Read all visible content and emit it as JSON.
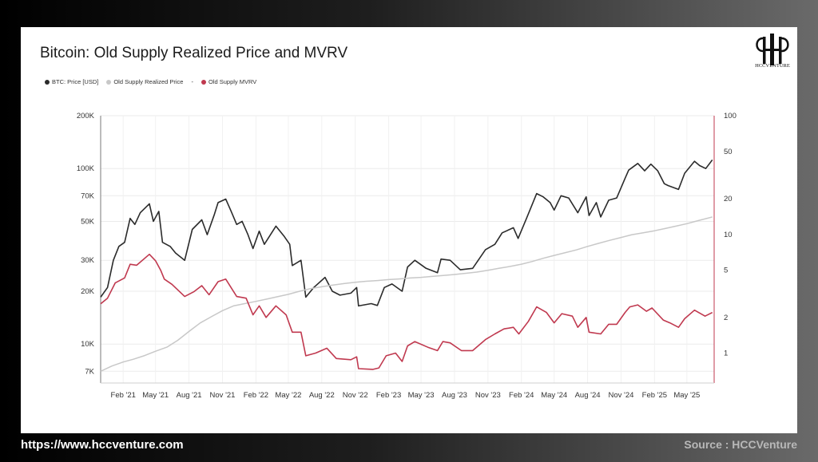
{
  "footer": {
    "url": "https://www.hccventure.com",
    "source": "Source : HCCVenture"
  },
  "brand": {
    "logo_text": "HCCVENTURE"
  },
  "chart_data": {
    "type": "line",
    "title": "Bitcoin: Old Supply Realized Price and MVRV",
    "legend": [
      {
        "name": "BTC: Price [USD]",
        "color": "#2b2b2b"
      },
      {
        "name": "Old Supply Realized Price",
        "color": "#c8c8c8"
      },
      {
        "name": "-",
        "color": ""
      },
      {
        "name": "Old Supply MVRV",
        "color": "#c0394f"
      }
    ],
    "legend_position": "top-left",
    "x_type": "date",
    "x_range": [
      "2020-12-01",
      "2025-07-15"
    ],
    "x_ticks": [
      {
        "label": "Feb '21",
        "date": "2021-02-01"
      },
      {
        "label": "May '21",
        "date": "2021-05-01"
      },
      {
        "label": "Aug '21",
        "date": "2021-08-01"
      },
      {
        "label": "Nov '21",
        "date": "2021-11-01"
      },
      {
        "label": "Feb '22",
        "date": "2022-02-01"
      },
      {
        "label": "May '22",
        "date": "2022-05-01"
      },
      {
        "label": "Aug '22",
        "date": "2022-08-01"
      },
      {
        "label": "Nov '22",
        "date": "2022-11-01"
      },
      {
        "label": "Feb '23",
        "date": "2023-02-01"
      },
      {
        "label": "May '23",
        "date": "2023-05-01"
      },
      {
        "label": "Aug '23",
        "date": "2023-08-01"
      },
      {
        "label": "Nov '23",
        "date": "2023-11-01"
      },
      {
        "label": "Feb '24",
        "date": "2024-02-01"
      },
      {
        "label": "May '24",
        "date": "2024-05-01"
      },
      {
        "label": "Aug '24",
        "date": "2024-08-01"
      },
      {
        "label": "Nov '24",
        "date": "2024-11-01"
      },
      {
        "label": "Feb '25",
        "date": "2025-02-01"
      },
      {
        "label": "May '25",
        "date": "2025-05-01"
      }
    ],
    "y_left": {
      "scale": "log",
      "range": [
        6000,
        200000
      ],
      "ticks": [
        {
          "label": "7K",
          "value": 7000
        },
        {
          "label": "10K",
          "value": 10000
        },
        {
          "label": "20K",
          "value": 20000
        },
        {
          "label": "30K",
          "value": 30000
        },
        {
          "label": "50K",
          "value": 50000
        },
        {
          "label": "70K",
          "value": 70000
        },
        {
          "label": "100K",
          "value": 100000
        },
        {
          "label": "200K",
          "value": 200000
        }
      ]
    },
    "y_right": {
      "scale": "log",
      "range": [
        0.56,
        100
      ],
      "color": "#c0394f",
      "ticks": [
        {
          "label": "1",
          "value": 1
        },
        {
          "label": "2",
          "value": 2
        },
        {
          "label": "5",
          "value": 5
        },
        {
          "label": "10",
          "value": 10
        },
        {
          "label": "20",
          "value": 20
        },
        {
          "label": "50",
          "value": 50
        },
        {
          "label": "100",
          "value": 100
        }
      ]
    },
    "grid": true,
    "series": [
      {
        "name": "BTC: Price [USD]",
        "axis": "left",
        "color": "#2b2b2b",
        "points": [
          [
            "2020-12-01",
            18500
          ],
          [
            "2020-12-20",
            21000
          ],
          [
            "2021-01-05",
            30000
          ],
          [
            "2021-01-20",
            36000
          ],
          [
            "2021-02-05",
            38000
          ],
          [
            "2021-02-20",
            52000
          ],
          [
            "2021-03-05",
            48000
          ],
          [
            "2021-03-20",
            56000
          ],
          [
            "2021-04-14",
            63000
          ],
          [
            "2021-04-25",
            50000
          ],
          [
            "2021-05-10",
            57000
          ],
          [
            "2021-05-20",
            38000
          ],
          [
            "2021-06-10",
            36000
          ],
          [
            "2021-06-25",
            33000
          ],
          [
            "2021-07-20",
            30000
          ],
          [
            "2021-08-10",
            45000
          ],
          [
            "2021-09-05",
            51000
          ],
          [
            "2021-09-20",
            42000
          ],
          [
            "2021-10-10",
            55000
          ],
          [
            "2021-10-20",
            64000
          ],
          [
            "2021-11-10",
            67000
          ],
          [
            "2021-11-25",
            57000
          ],
          [
            "2021-12-10",
            48000
          ],
          [
            "2021-12-25",
            50000
          ],
          [
            "2022-01-10",
            42000
          ],
          [
            "2022-01-24",
            35000
          ],
          [
            "2022-02-10",
            44000
          ],
          [
            "2022-02-24",
            37000
          ],
          [
            "2022-03-28",
            47000
          ],
          [
            "2022-04-20",
            41000
          ],
          [
            "2022-05-05",
            37000
          ],
          [
            "2022-05-12",
            28000
          ],
          [
            "2022-06-05",
            30000
          ],
          [
            "2022-06-18",
            18500
          ],
          [
            "2022-07-10",
            21000
          ],
          [
            "2022-08-10",
            24000
          ],
          [
            "2022-08-30",
            20000
          ],
          [
            "2022-09-20",
            19000
          ],
          [
            "2022-10-20",
            19500
          ],
          [
            "2022-11-05",
            21000
          ],
          [
            "2022-11-10",
            16500
          ],
          [
            "2022-12-15",
            17000
          ],
          [
            "2023-01-01",
            16600
          ],
          [
            "2023-01-20",
            21000
          ],
          [
            "2023-02-10",
            22000
          ],
          [
            "2023-03-10",
            20000
          ],
          [
            "2023-03-25",
            27500
          ],
          [
            "2023-04-14",
            30000
          ],
          [
            "2023-05-15",
            27000
          ],
          [
            "2023-06-15",
            25500
          ],
          [
            "2023-06-25",
            30500
          ],
          [
            "2023-07-20",
            30000
          ],
          [
            "2023-08-17",
            26500
          ],
          [
            "2023-09-20",
            27000
          ],
          [
            "2023-10-25",
            34500
          ],
          [
            "2023-11-20",
            37000
          ],
          [
            "2023-12-10",
            43000
          ],
          [
            "2024-01-10",
            46000
          ],
          [
            "2024-01-23",
            40000
          ],
          [
            "2024-02-15",
            52000
          ],
          [
            "2024-03-14",
            72000
          ],
          [
            "2024-04-01",
            69000
          ],
          [
            "2024-04-20",
            64000
          ],
          [
            "2024-05-01",
            58000
          ],
          [
            "2024-05-20",
            70000
          ],
          [
            "2024-06-10",
            68000
          ],
          [
            "2024-07-05",
            56000
          ],
          [
            "2024-07-28",
            69000
          ],
          [
            "2024-08-05",
            54000
          ],
          [
            "2024-08-25",
            64000
          ],
          [
            "2024-09-06",
            53000
          ],
          [
            "2024-09-28",
            66000
          ],
          [
            "2024-10-20",
            68000
          ],
          [
            "2024-11-12",
            88000
          ],
          [
            "2024-11-22",
            98000
          ],
          [
            "2024-12-17",
            107000
          ],
          [
            "2025-01-05",
            97000
          ],
          [
            "2025-01-22",
            106000
          ],
          [
            "2025-02-10",
            97000
          ],
          [
            "2025-02-28",
            82000
          ],
          [
            "2025-03-10",
            80000
          ],
          [
            "2025-04-08",
            76000
          ],
          [
            "2025-04-25",
            94000
          ],
          [
            "2025-05-22",
            110000
          ],
          [
            "2025-06-05",
            104000
          ],
          [
            "2025-06-22",
            100000
          ],
          [
            "2025-07-10",
            112000
          ]
        ]
      },
      {
        "name": "Old Supply Realized Price",
        "axis": "left",
        "color": "#c8c8c8",
        "points": [
          [
            "2020-12-01",
            7000
          ],
          [
            "2021-01-01",
            7500
          ],
          [
            "2021-02-01",
            7900
          ],
          [
            "2021-03-01",
            8200
          ],
          [
            "2021-04-01",
            8600
          ],
          [
            "2021-05-01",
            9100
          ],
          [
            "2021-06-01",
            9600
          ],
          [
            "2021-07-01",
            10500
          ],
          [
            "2021-08-01",
            11800
          ],
          [
            "2021-09-01",
            13200
          ],
          [
            "2021-10-01",
            14300
          ],
          [
            "2021-11-01",
            15500
          ],
          [
            "2021-12-01",
            16500
          ],
          [
            "2022-01-01",
            17000
          ],
          [
            "2022-02-01",
            17500
          ],
          [
            "2022-03-01",
            18000
          ],
          [
            "2022-04-01",
            18600
          ],
          [
            "2022-05-01",
            19200
          ],
          [
            "2022-06-01",
            20000
          ],
          [
            "2022-07-01",
            20700
          ],
          [
            "2022-08-01",
            21200
          ],
          [
            "2022-09-01",
            21700
          ],
          [
            "2022-10-01",
            22100
          ],
          [
            "2022-11-01",
            22500
          ],
          [
            "2022-12-01",
            22800
          ],
          [
            "2023-01-01",
            23000
          ],
          [
            "2023-02-01",
            23300
          ],
          [
            "2023-03-01",
            23500
          ],
          [
            "2023-04-01",
            23800
          ],
          [
            "2023-05-01",
            24000
          ],
          [
            "2023-06-01",
            24300
          ],
          [
            "2023-07-01",
            24600
          ],
          [
            "2023-08-01",
            24900
          ],
          [
            "2023-09-01",
            25300
          ],
          [
            "2023-10-01",
            25700
          ],
          [
            "2023-11-01",
            26300
          ],
          [
            "2023-12-01",
            27000
          ],
          [
            "2024-01-01",
            27700
          ],
          [
            "2024-02-01",
            28500
          ],
          [
            "2024-03-01",
            29500
          ],
          [
            "2024-04-01",
            30800
          ],
          [
            "2024-05-01",
            32000
          ],
          [
            "2024-06-01",
            33200
          ],
          [
            "2024-07-01",
            34400
          ],
          [
            "2024-08-01",
            36000
          ],
          [
            "2024-09-01",
            37500
          ],
          [
            "2024-10-01",
            39000
          ],
          [
            "2024-11-01",
            40500
          ],
          [
            "2024-12-01",
            42000
          ],
          [
            "2025-01-01",
            43000
          ],
          [
            "2025-02-01",
            44200
          ],
          [
            "2025-03-01",
            45500
          ],
          [
            "2025-04-01",
            47000
          ],
          [
            "2025-05-01",
            48500
          ],
          [
            "2025-06-01",
            50500
          ],
          [
            "2025-07-10",
            53000
          ]
        ]
      },
      {
        "name": "Old Supply MVRV",
        "axis": "right",
        "color": "#c0394f",
        "points": [
          [
            "2020-12-01",
            2.6
          ],
          [
            "2020-12-20",
            2.9
          ],
          [
            "2021-01-10",
            3.9
          ],
          [
            "2021-02-05",
            4.3
          ],
          [
            "2021-02-20",
            5.6
          ],
          [
            "2021-03-10",
            5.5
          ],
          [
            "2021-04-14",
            6.8
          ],
          [
            "2021-05-01",
            6.0
          ],
          [
            "2021-05-15",
            5.0
          ],
          [
            "2021-05-25",
            4.2
          ],
          [
            "2021-06-15",
            3.8
          ],
          [
            "2021-07-20",
            3.0
          ],
          [
            "2021-08-15",
            3.3
          ],
          [
            "2021-09-05",
            3.7
          ],
          [
            "2021-09-25",
            3.1
          ],
          [
            "2021-10-20",
            4.0
          ],
          [
            "2021-11-10",
            4.2
          ],
          [
            "2021-12-10",
            3.0
          ],
          [
            "2022-01-05",
            2.9
          ],
          [
            "2022-01-24",
            2.1
          ],
          [
            "2022-02-10",
            2.5
          ],
          [
            "2022-03-01",
            2.0
          ],
          [
            "2022-03-28",
            2.5
          ],
          [
            "2022-04-25",
            2.1
          ],
          [
            "2022-05-12",
            1.5
          ],
          [
            "2022-06-05",
            1.5
          ],
          [
            "2022-06-18",
            0.95
          ],
          [
            "2022-07-15",
            1.0
          ],
          [
            "2022-08-15",
            1.1
          ],
          [
            "2022-09-10",
            0.9
          ],
          [
            "2022-10-20",
            0.88
          ],
          [
            "2022-11-05",
            0.93
          ],
          [
            "2022-11-10",
            0.74
          ],
          [
            "2022-12-20",
            0.73
          ],
          [
            "2023-01-05",
            0.75
          ],
          [
            "2023-01-25",
            0.95
          ],
          [
            "2023-02-20",
            1.0
          ],
          [
            "2023-03-10",
            0.85
          ],
          [
            "2023-03-25",
            1.15
          ],
          [
            "2023-04-14",
            1.25
          ],
          [
            "2023-05-20",
            1.12
          ],
          [
            "2023-06-15",
            1.05
          ],
          [
            "2023-06-30",
            1.25
          ],
          [
            "2023-07-20",
            1.22
          ],
          [
            "2023-08-20",
            1.05
          ],
          [
            "2023-09-20",
            1.05
          ],
          [
            "2023-10-25",
            1.3
          ],
          [
            "2023-11-20",
            1.45
          ],
          [
            "2023-12-15",
            1.6
          ],
          [
            "2024-01-10",
            1.65
          ],
          [
            "2024-01-25",
            1.45
          ],
          [
            "2024-02-20",
            1.85
          ],
          [
            "2024-03-14",
            2.45
          ],
          [
            "2024-04-10",
            2.2
          ],
          [
            "2024-05-01",
            1.8
          ],
          [
            "2024-05-22",
            2.15
          ],
          [
            "2024-06-20",
            2.05
          ],
          [
            "2024-07-05",
            1.65
          ],
          [
            "2024-07-28",
            2.0
          ],
          [
            "2024-08-05",
            1.5
          ],
          [
            "2024-09-06",
            1.45
          ],
          [
            "2024-09-28",
            1.75
          ],
          [
            "2024-10-20",
            1.75
          ],
          [
            "2024-11-12",
            2.2
          ],
          [
            "2024-11-25",
            2.45
          ],
          [
            "2024-12-17",
            2.55
          ],
          [
            "2025-01-10",
            2.25
          ],
          [
            "2025-01-25",
            2.4
          ],
          [
            "2025-02-25",
            1.9
          ],
          [
            "2025-03-15",
            1.8
          ],
          [
            "2025-04-08",
            1.65
          ],
          [
            "2025-04-25",
            1.95
          ],
          [
            "2025-05-22",
            2.3
          ],
          [
            "2025-06-20",
            2.05
          ],
          [
            "2025-07-10",
            2.2
          ]
        ]
      }
    ]
  }
}
